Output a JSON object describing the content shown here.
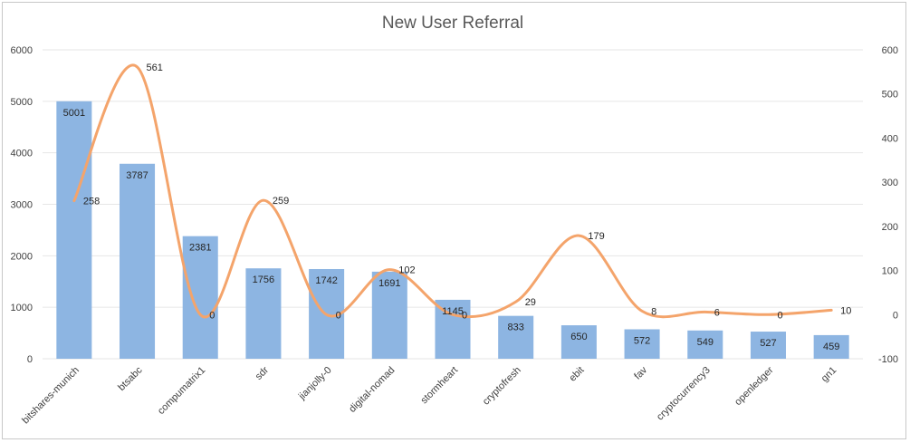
{
  "chart_data": {
    "type": "bar",
    "title": "New User Referral",
    "categories": [
      "bitshares-munich",
      "btsabc",
      "compumatrix1",
      "sdr",
      "jianjolly-0",
      "digital-nomad",
      "stormheart",
      "cryptofresh",
      "ebit",
      "fav",
      "cryptocurrency3",
      "openledger",
      "gn1"
    ],
    "series": [
      {
        "type": "bar",
        "values": [
          5001,
          3787,
          2381,
          1756,
          1742,
          1691,
          1145,
          833,
          650,
          572,
          549,
          527,
          459
        ],
        "color": "#8db5e2",
        "axis": "left"
      },
      {
        "type": "line",
        "smooth": true,
        "values": [
          258,
          561,
          0,
          259,
          0,
          102,
          0,
          29,
          179,
          8,
          6,
          0,
          10
        ],
        "color": "#f4a46b",
        "axis": "right"
      }
    ],
    "y_left": {
      "min": 0,
      "max": 6000,
      "ticks": [
        0,
        1000,
        2000,
        3000,
        4000,
        5000,
        6000
      ]
    },
    "y_right": {
      "min": -100,
      "max": 600,
      "ticks": [
        -100,
        0,
        100,
        200,
        300,
        400,
        500,
        600
      ]
    },
    "grid": true,
    "legend": "none"
  }
}
